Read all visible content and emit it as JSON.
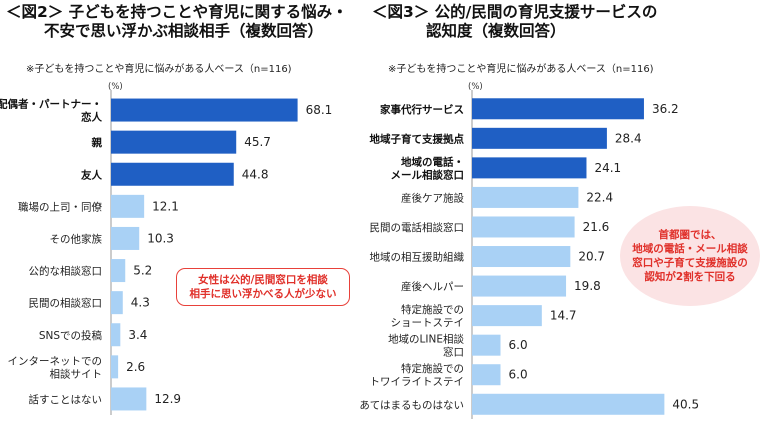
{
  "left_panel": {
    "title_line1": "＜図2＞ 子どもを持つことや育児に関する悩み・",
    "title_line2": "不安で思い浮かぶ相談相手（複数回答）",
    "note": "※子どもを持つことや育児に悩みがある人ベース（n=116)",
    "unit": "(%)",
    "callout": "女性は公的/民間窓口を相談\n相手に思い浮かべる人が少ない"
  },
  "right_panel": {
    "title_line1": "＜図3＞ 公的/民間の育児支援サービスの",
    "title_line2": "認知度（複数回答）",
    "note": "※子どもを持つことや育児に悩みがある人ベース（n=116)",
    "unit": "(%)",
    "callout": "首都圏では、\n地域の電話・メール相談\n窓口や子育て支援施設の\n認知が2割を下回る"
  },
  "colors": {
    "dark": "#1f5fc4",
    "light": "#a9d1f5",
    "callout_red": "#e8413a",
    "callout_pink_bg": "#fbe3e4"
  },
  "chart_data": [
    {
      "type": "bar",
      "orientation": "horizontal",
      "title": "子どもを持つことや育児に関する悩み・不安で思い浮かぶ相談相手（複数回答）",
      "unit": "%",
      "categories": [
        "配偶者・パートナー・\n恋人",
        "親",
        "友人",
        "職場の上司・同僚",
        "その他家族",
        "公的な相談窓口",
        "民間の相談窓口",
        "SNSでの投稿",
        "インターネットでの\n相談サイト",
        "話すことはない"
      ],
      "values": [
        68.1,
        45.7,
        44.8,
        12.1,
        10.3,
        5.2,
        4.3,
        3.4,
        2.6,
        12.9
      ],
      "value_labels": [
        "68.1",
        "45.7",
        "44.8",
        "12.1",
        "10.3",
        "5.2",
        "4.3",
        "3.4",
        "2.6",
        "12.9"
      ],
      "highlight": [
        true,
        true,
        true,
        false,
        false,
        false,
        false,
        false,
        false,
        false
      ],
      "xlim": [
        0,
        100
      ]
    },
    {
      "type": "bar",
      "orientation": "horizontal",
      "title": "公的/民間の育児支援サービスの認知度（複数回答）",
      "unit": "%",
      "categories": [
        "家事代行サービス",
        "地域子育て支援拠点",
        "地域の電話・\nメール相談窓口",
        "産後ケア施設",
        "民間の電話相談窓口",
        "地域の相互援助組織",
        "産後ヘルパー",
        "特定施設での\nショートステイ",
        "地域のLINE相談\n窓口",
        "特定施設での\nトワイライトステイ",
        "あてはまるものはない"
      ],
      "values": [
        36.2,
        28.4,
        24.1,
        22.4,
        21.6,
        20.7,
        19.8,
        14.7,
        6.0,
        6.0,
        40.5
      ],
      "value_labels": [
        "36.2",
        "28.4",
        "24.1",
        "22.4",
        "21.6",
        "20.7",
        "19.8",
        "14.7",
        "6.0",
        "6.0",
        "40.5"
      ],
      "highlight": [
        true,
        true,
        true,
        false,
        false,
        false,
        false,
        false,
        false,
        false,
        false
      ],
      "xlim": [
        0,
        50
      ]
    }
  ]
}
